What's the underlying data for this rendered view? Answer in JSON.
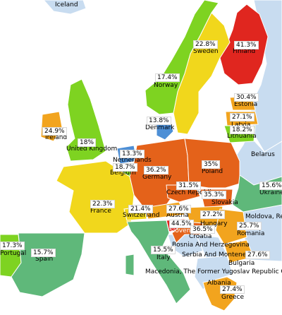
{
  "colors": {
    "sea": "#ffffff",
    "no_data": "#c8dcf0",
    "green": "#5fb87a",
    "lightgreen": "#7ed321",
    "yellow": "#f1d71c",
    "orange": "#f2a41e",
    "darkorange": "#e4621a",
    "red": "#e0261f",
    "blue": "#4d8fd6"
  },
  "countries": [
    {
      "id": "iceland",
      "name": "Iceland"
    },
    {
      "id": "finland",
      "name": "Finland",
      "value": "41.3%",
      "color": "red"
    },
    {
      "id": "sweden",
      "name": "Sweden",
      "value": "22.8%",
      "color": "yellow"
    },
    {
      "id": "norway",
      "name": "Norway",
      "value": "17.4%",
      "color": "lightgreen"
    },
    {
      "id": "estonia",
      "name": "Estonia",
      "value": "30.4%",
      "color": "orange"
    },
    {
      "id": "latvia",
      "name": "Latvia",
      "value": "27.1%",
      "color": "orange"
    },
    {
      "id": "lithuania",
      "name": "Lithuania",
      "value": "18.2%",
      "color": "lightgreen"
    },
    {
      "id": "denmark",
      "name": "Denmark",
      "value": "13.8%",
      "color": "blue"
    },
    {
      "id": "ireland",
      "name": "Ireland",
      "value": "24.9%",
      "color": "orange"
    },
    {
      "id": "uk",
      "name": "United Kingdom",
      "value": "18%",
      "color": "lightgreen"
    },
    {
      "id": "netherlands",
      "name": "Netherlands",
      "value": "13.3%",
      "color": "blue"
    },
    {
      "id": "belgium",
      "name": "Belgium",
      "value": "18.7%",
      "color": "lightgreen"
    },
    {
      "id": "germany",
      "name": "Germany",
      "value": "36.2%",
      "color": "darkorange"
    },
    {
      "id": "poland",
      "name": "Poland",
      "value": "35%",
      "color": "darkorange"
    },
    {
      "id": "belarus",
      "name": "Belarus"
    },
    {
      "id": "ukraine",
      "name": "Ukraine",
      "value": "15.6%",
      "color": "green"
    },
    {
      "id": "czech",
      "name": "Czech Republic",
      "value": "31.5%",
      "color": "darkorange"
    },
    {
      "id": "slovakia",
      "name": "Slovakia",
      "value": "35.3%",
      "color": "darkorange"
    },
    {
      "id": "france",
      "name": "France",
      "value": "22.3%",
      "color": "yellow"
    },
    {
      "id": "switzerland",
      "name": "Switzerland",
      "value": "21.4%",
      "color": "yellow"
    },
    {
      "id": "austria",
      "name": "Austria",
      "value": "27.6%",
      "color": "orange"
    },
    {
      "id": "hungary",
      "name": "Hungary",
      "value": "27.2%",
      "color": "orange"
    },
    {
      "id": "moldova",
      "name": "Moldova, Repu"
    },
    {
      "id": "romania",
      "name": "Romania",
      "value": "25.7%",
      "color": "orange"
    },
    {
      "id": "slovenia",
      "name": "Slovenia",
      "value": "44.5%",
      "color": "red"
    },
    {
      "id": "croatia",
      "name": "Croatia",
      "value": "36.5%",
      "color": "darkorange"
    },
    {
      "id": "bosnia",
      "name": "Bosnia And Herzegovina"
    },
    {
      "id": "serbia",
      "name": "Serbia And Montenegro"
    },
    {
      "id": "bulgaria",
      "name": "Bulgaria",
      "value": "27.6%",
      "color": "orange"
    },
    {
      "id": "portugal",
      "name": "Portugal",
      "value": "17.3%",
      "color": "lightgreen"
    },
    {
      "id": "spain",
      "name": "Spain",
      "value": "15.7%",
      "color": "green"
    },
    {
      "id": "italy",
      "name": "Italy",
      "value": "15.5%",
      "color": "green"
    },
    {
      "id": "macedonia",
      "name": "Macedonia, The Former Yugoslav Republic Of"
    },
    {
      "id": "albania",
      "name": "Albania"
    },
    {
      "id": "greece",
      "name": "Greece",
      "value": "27.4%",
      "color": "orange"
    }
  ]
}
